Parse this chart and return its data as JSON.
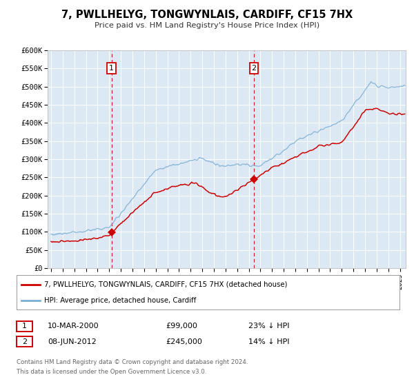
{
  "title": "7, PWLLHELYG, TONGWYNLAIS, CARDIFF, CF15 7HX",
  "subtitle": "Price paid vs. HM Land Registry's House Price Index (HPI)",
  "ylim": [
    0,
    600000
  ],
  "yticks": [
    0,
    50000,
    100000,
    150000,
    200000,
    250000,
    300000,
    350000,
    400000,
    450000,
    500000,
    550000,
    600000
  ],
  "ytick_labels": [
    "£0",
    "£50K",
    "£100K",
    "£150K",
    "£200K",
    "£250K",
    "£300K",
    "£350K",
    "£400K",
    "£450K",
    "£500K",
    "£550K",
    "£600K"
  ],
  "xlim_start": 1994.7,
  "xlim_end": 2025.5,
  "background_color": "#ffffff",
  "plot_bg_color": "#dde8f5",
  "grid_color": "#ffffff",
  "red_line_color": "#cc0000",
  "blue_line_color": "#7bafd4",
  "marker1_x": 2000.19,
  "marker1_y": 99000,
  "marker2_x": 2012.44,
  "marker2_y": 245000,
  "dashed_line1_x": 2000.19,
  "dashed_line2_x": 2012.44,
  "annotation1_label": "1",
  "annotation2_label": "2",
  "legend_red_label": "7, PWLLHELYG, TONGWYNLAIS, CARDIFF, CF15 7HX (detached house)",
  "legend_blue_label": "HPI: Average price, detached house, Cardiff",
  "table_row1": [
    "1",
    "10-MAR-2000",
    "£99,000",
    "23% ↓ HPI"
  ],
  "table_row2": [
    "2",
    "08-JUN-2012",
    "£245,000",
    "14% ↓ HPI"
  ],
  "footer1": "Contains HM Land Registry data © Crown copyright and database right 2024.",
  "footer2": "This data is licensed under the Open Government Licence v3.0."
}
